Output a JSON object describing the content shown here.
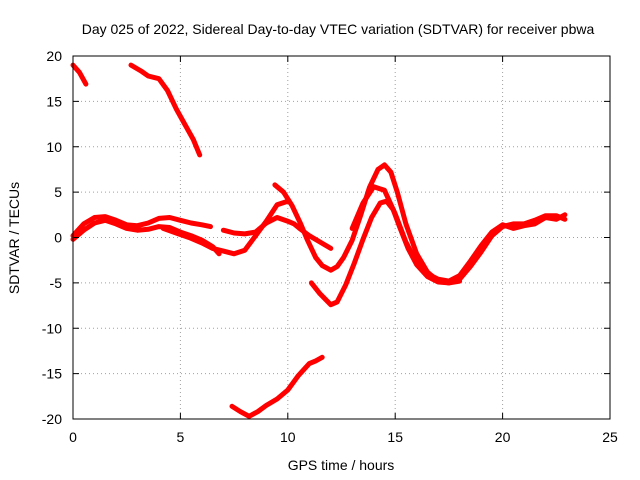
{
  "chart_data": {
    "type": "line",
    "title": "Day 025 of 2022, Sidereal Day-to-day VTEC variation (SDTVAR) for receiver pbwa",
    "xlabel": "GPS time / hours",
    "ylabel": "SDTVAR / TECUs",
    "xlim": [
      0,
      25
    ],
    "ylim": [
      -20,
      20
    ],
    "xticks": [
      "0",
      "5",
      "10",
      "15",
      "20",
      "25"
    ],
    "yticks": [
      "-20",
      "-15",
      "-10",
      "-5",
      "0",
      "5",
      "10",
      "15",
      "20"
    ],
    "grid": true,
    "color": "#ff0000",
    "series": [
      {
        "name": "arc-1",
        "x": [
          0.0,
          0.3,
          0.6
        ],
        "y": [
          19.0,
          18.2,
          16.9
        ]
      },
      {
        "name": "arc-2",
        "x": [
          2.7,
          3.2,
          3.5,
          4.0,
          4.4,
          4.8,
          5.2,
          5.6,
          5.9
        ],
        "y": [
          19.0,
          18.3,
          17.8,
          17.5,
          16.2,
          14.2,
          12.5,
          10.8,
          9.1
        ]
      },
      {
        "name": "arc-3",
        "x": [
          0.0,
          0.5,
          1.0,
          1.5,
          2.0,
          2.5,
          3.0,
          3.5,
          4.0,
          4.5,
          5.0,
          5.5,
          6.0,
          6.4
        ],
        "y": [
          0.2,
          1.5,
          2.2,
          2.3,
          1.9,
          1.4,
          1.3,
          1.6,
          2.1,
          2.2,
          1.9,
          1.6,
          1.4,
          1.2
        ]
      },
      {
        "name": "arc-4",
        "x": [
          0.0,
          0.5,
          1.0,
          1.5,
          2.0,
          2.5,
          3.0,
          3.5,
          4.0,
          4.5,
          5.0,
          5.5,
          6.0,
          6.5,
          6.8
        ],
        "y": [
          -0.2,
          0.8,
          1.6,
          1.9,
          1.5,
          1.0,
          0.8,
          0.9,
          1.2,
          1.1,
          0.6,
          0.2,
          -0.3,
          -1.0,
          -1.8
        ]
      },
      {
        "name": "arc-5",
        "x": [
          4.2,
          4.8,
          5.4,
          6.0,
          6.5,
          7.0,
          7.5,
          8.0,
          8.5,
          9.0,
          9.5,
          10.0
        ],
        "y": [
          1.0,
          0.5,
          0.0,
          -0.6,
          -1.2,
          -1.5,
          -1.8,
          -1.4,
          0.2,
          1.8,
          3.6,
          4.0
        ]
      },
      {
        "name": "arc-6",
        "x": [
          7.0,
          7.5,
          8.0,
          8.5,
          9.0,
          9.5,
          10.0,
          10.3,
          10.6,
          11.0,
          11.5,
          12.0
        ],
        "y": [
          0.8,
          0.5,
          0.4,
          0.6,
          1.6,
          2.2,
          1.8,
          1.5,
          0.9,
          0.2,
          -0.5,
          -1.2
        ]
      },
      {
        "name": "arc-7",
        "x": [
          9.4,
          9.8,
          10.2,
          10.6,
          10.9,
          11.1,
          11.3,
          11.6,
          12.0,
          12.3,
          12.6,
          13.0,
          13.4,
          13.8,
          14.2,
          14.5,
          14.8,
          15.1,
          15.5,
          16.0,
          16.5,
          17.0,
          17.5,
          18.0
        ],
        "y": [
          5.8,
          5.0,
          3.5,
          1.5,
          -0.2,
          -1.2,
          -2.2,
          -3.1,
          -3.6,
          -3.2,
          -2.2,
          -0.3,
          2.5,
          5.5,
          7.5,
          8.0,
          7.2,
          5.0,
          1.5,
          -1.8,
          -3.8,
          -4.8,
          -5.0,
          -4.8
        ]
      },
      {
        "name": "arc-8",
        "x": [
          11.1,
          11.5,
          12.0,
          12.3,
          12.7,
          13.1,
          13.5,
          13.9,
          14.3,
          14.6,
          14.9,
          15.2,
          15.6,
          16.0,
          16.5,
          17.0,
          17.5,
          18.0,
          18.5,
          19.0,
          19.5,
          20.0,
          20.5,
          21.0,
          21.5,
          22.0,
          22.5,
          22.9
        ],
        "y": [
          -5.0,
          -6.2,
          -7.4,
          -7.1,
          -5.2,
          -2.8,
          -0.2,
          2.2,
          3.8,
          4.0,
          3.1,
          1.2,
          -1.2,
          -3.0,
          -4.3,
          -4.9,
          -5.0,
          -4.6,
          -3.2,
          -1.6,
          0.2,
          1.2,
          1.5,
          1.5,
          1.9,
          2.4,
          2.4,
          2.0
        ]
      },
      {
        "name": "arc-9",
        "x": [
          13.0,
          13.5,
          14.0,
          14.5,
          15.0,
          15.5,
          16.0,
          16.5,
          17.0,
          17.5,
          18.0,
          18.5,
          19.0,
          19.5,
          20.0,
          20.5,
          21.0,
          21.5,
          22.0,
          22.5,
          22.9
        ],
        "y": [
          1.0,
          3.8,
          5.6,
          5.2,
          2.6,
          -0.5,
          -2.8,
          -4.0,
          -4.6,
          -4.8,
          -4.2,
          -2.6,
          -0.9,
          0.6,
          1.4,
          1.0,
          1.3,
          1.5,
          2.2,
          2.0,
          2.5
        ]
      },
      {
        "name": "arc-10",
        "x": [
          7.4,
          7.8,
          8.2,
          8.6,
          9.0,
          9.5,
          10.0,
          10.5,
          11.0,
          11.3,
          11.6
        ],
        "y": [
          -18.6,
          -19.2,
          -19.7,
          -19.2,
          -18.5,
          -17.8,
          -16.8,
          -15.2,
          -13.9,
          -13.6,
          -13.2
        ]
      }
    ]
  }
}
